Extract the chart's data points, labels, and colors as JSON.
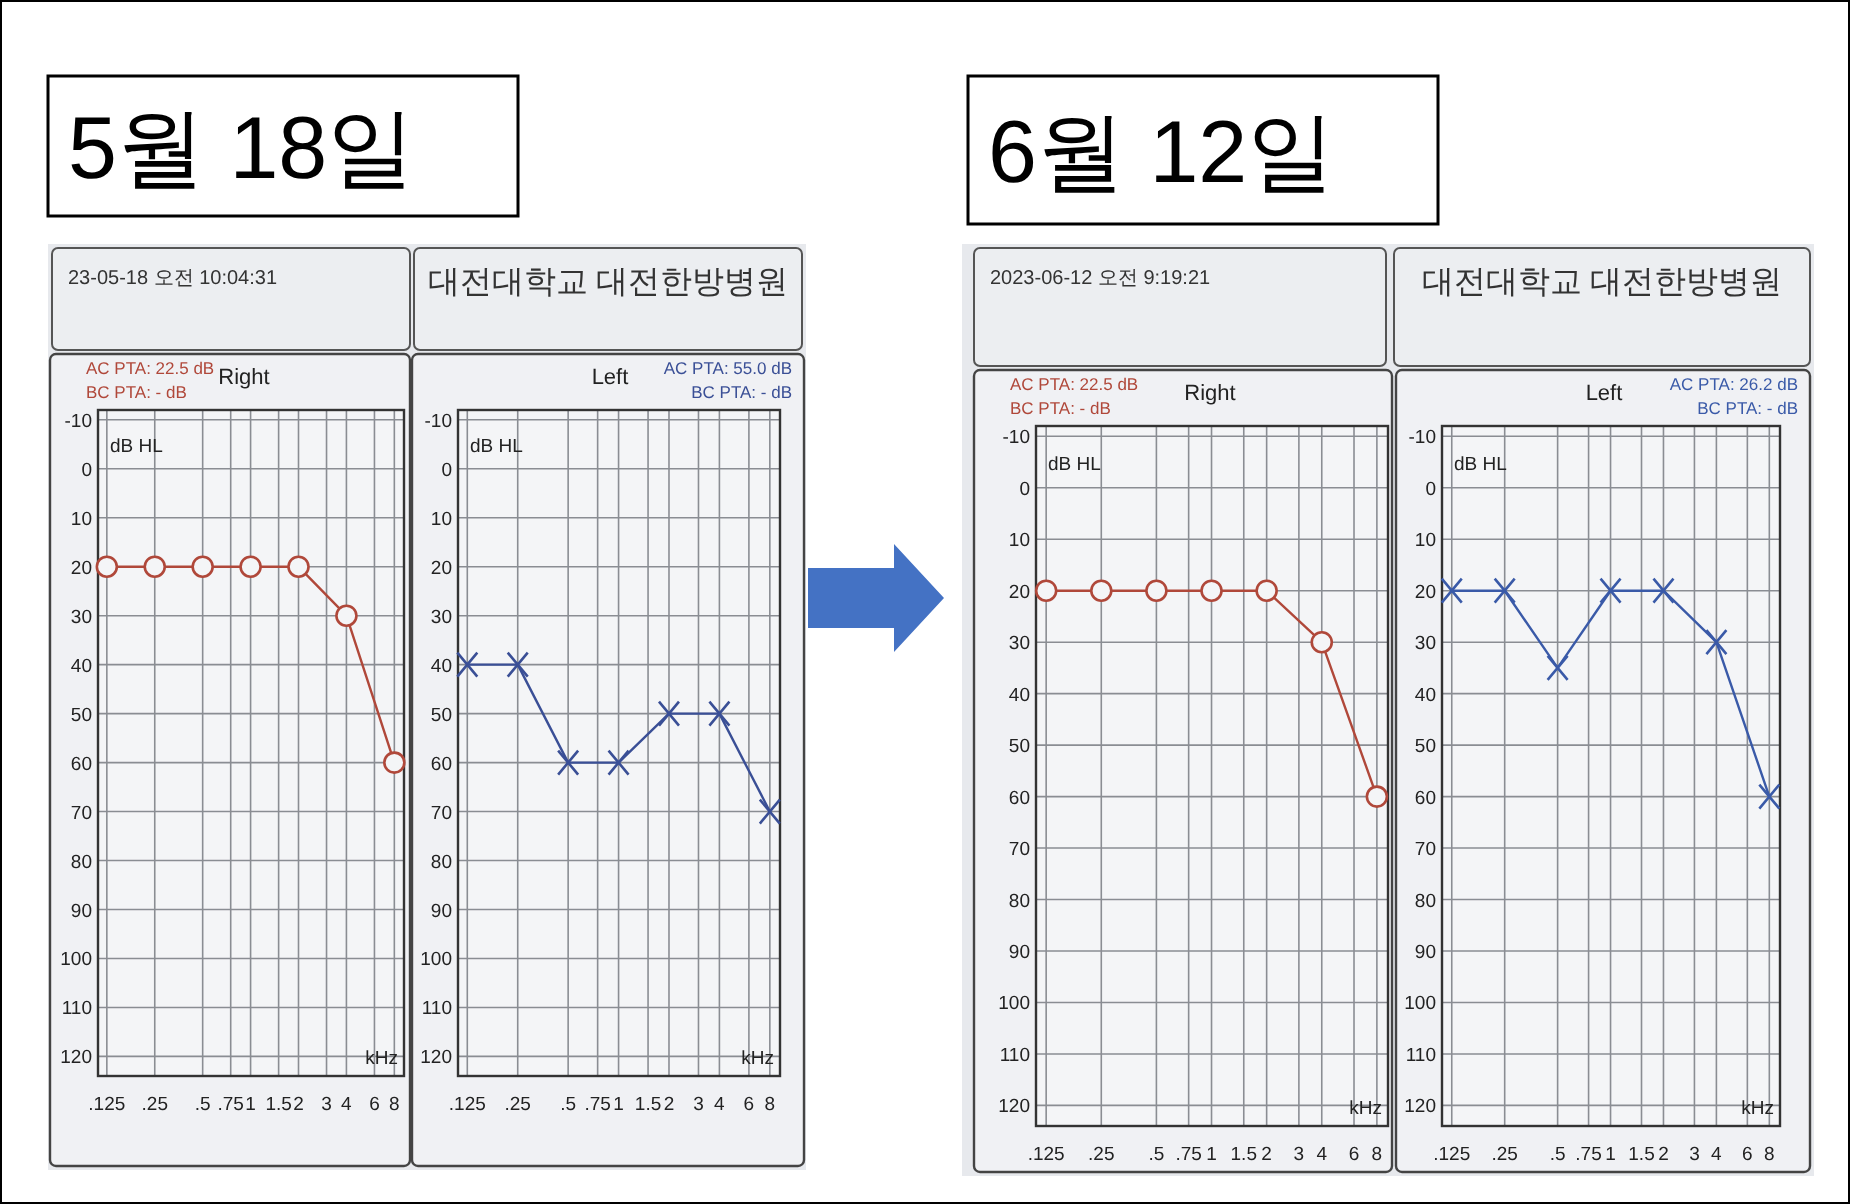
{
  "chart_data": [
    {
      "type": "other",
      "title": "5월 18일",
      "annotations": [
        "23-05-18 오전 10:04:31",
        "대전대학교 대전한방병원"
      ]
    },
    {
      "type": "line",
      "title": "Right",
      "xlabel": "kHz",
      "ylabel": "dB HL",
      "annotations": [
        "AC PTA: 22.5 dB",
        "BC PTA: - dB"
      ],
      "x": [
        0.125,
        0.25,
        0.5,
        1,
        2,
        4,
        8
      ],
      "series": [
        {
          "color": "#b0483a",
          "values": [
            20,
            20,
            20,
            20,
            20,
            30,
            60
          ]
        }
      ],
      "log": "x",
      "xlim": [
        0.11,
        9.2
      ],
      "xticks": [
        {
          "value": 0.125,
          "label": ".125"
        },
        {
          "value": 0.25,
          "label": ".25"
        },
        {
          "value": 0.5,
          "label": ".5"
        },
        {
          "value": 0.75,
          "label": ".75"
        },
        1,
        1.5,
        2,
        3,
        4,
        6,
        8
      ],
      "ylim": [
        124,
        -12
      ],
      "yticks": [
        -10,
        0,
        10,
        20,
        30,
        40,
        50,
        60,
        70,
        80,
        90,
        100,
        110,
        120
      ],
      "grid": true,
      "marker": "circle"
    },
    {
      "type": "line",
      "title": "Left",
      "xlabel": "kHz",
      "ylabel": "dB HL",
      "annotations": [
        "AC PTA: 55.0 dB",
        "BC PTA: - dB"
      ],
      "x": [
        0.125,
        0.25,
        0.5,
        1,
        2,
        4,
        8
      ],
      "series": [
        {
          "color": "#3a4f96",
          "values": [
            40,
            40,
            60,
            60,
            50,
            50,
            70
          ]
        }
      ],
      "log": "x",
      "xlim": [
        0.11,
        9.2
      ],
      "xticks": [
        {
          "value": 0.125,
          "label": ".125"
        },
        {
          "value": 0.25,
          "label": ".25"
        },
        {
          "value": 0.5,
          "label": ".5"
        },
        {
          "value": 0.75,
          "label": ".75"
        },
        1,
        1.5,
        2,
        3,
        4,
        6,
        8
      ],
      "ylim": [
        124,
        -12
      ],
      "yticks": [
        -10,
        0,
        10,
        20,
        30,
        40,
        50,
        60,
        70,
        80,
        90,
        100,
        110,
        120
      ],
      "grid": true,
      "marker": "cross"
    },
    {
      "type": "other",
      "title": "6월 12일",
      "annotations": [
        "2023-06-12 오전 9:19:21",
        "대전대학교 대전한방병원"
      ]
    },
    {
      "type": "line",
      "title": "Right",
      "xlabel": "kHz",
      "ylabel": "dB HL",
      "annotations": [
        "AC PTA: 22.5 dB",
        "BC PTA: - dB"
      ],
      "x": [
        0.125,
        0.25,
        0.5,
        1,
        2,
        4,
        8
      ],
      "series": [
        {
          "color": "#b0483a",
          "values": [
            20,
            20,
            20,
            20,
            20,
            30,
            60
          ]
        }
      ],
      "log": "x",
      "xlim": [
        0.11,
        9.2
      ],
      "xticks": [
        {
          "value": 0.125,
          "label": ".125"
        },
        {
          "value": 0.25,
          "label": ".25"
        },
        {
          "value": 0.5,
          "label": ".5"
        },
        {
          "value": 0.75,
          "label": ".75"
        },
        1,
        1.5,
        2,
        3,
        4,
        6,
        8
      ],
      "ylim": [
        124,
        -12
      ],
      "yticks": [
        -10,
        0,
        10,
        20,
        30,
        40,
        50,
        60,
        70,
        80,
        90,
        100,
        110,
        120
      ],
      "grid": true,
      "marker": "circle"
    },
    {
      "type": "line",
      "title": "Left",
      "xlabel": "kHz",
      "ylabel": "dB HL",
      "annotations": [
        "AC PTA: 26.2 dB",
        "BC PTA: - dB"
      ],
      "x": [
        0.125,
        0.25,
        0.5,
        1,
        2,
        4,
        8
      ],
      "series": [
        {
          "color": "#3a5aa8",
          "values": [
            20,
            20,
            35,
            20,
            20,
            30,
            60
          ]
        }
      ],
      "log": "x",
      "xlim": [
        0.11,
        9.2
      ],
      "xticks": [
        {
          "value": 0.125,
          "label": ".125"
        },
        {
          "value": 0.25,
          "label": ".25"
        },
        {
          "value": 0.5,
          "label": ".5"
        },
        {
          "value": 0.75,
          "label": ".75"
        },
        1,
        1.5,
        2,
        3,
        4,
        6,
        8
      ],
      "ylim": [
        124,
        -12
      ],
      "yticks": [
        -10,
        0,
        10,
        20,
        30,
        40,
        50,
        60,
        70,
        80,
        90,
        100,
        110,
        120
      ],
      "grid": true,
      "marker": "cross"
    }
  ]
}
